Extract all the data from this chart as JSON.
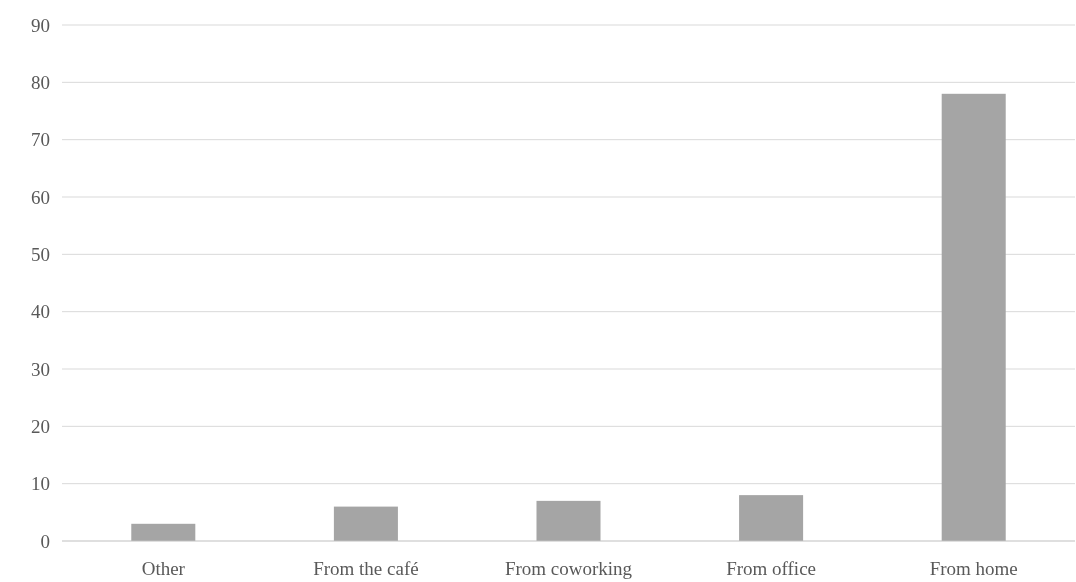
{
  "chart_data": {
    "type": "bar",
    "categories": [
      "Other",
      "From the café",
      "From coworking",
      "From office",
      "From home"
    ],
    "values": [
      3,
      6,
      7,
      8,
      78
    ],
    "color": "#a5a5a5",
    "ylim": [
      0,
      90
    ],
    "yticks": [
      0,
      10,
      20,
      30,
      40,
      50,
      60,
      70,
      80,
      90
    ],
    "grid": "y"
  }
}
